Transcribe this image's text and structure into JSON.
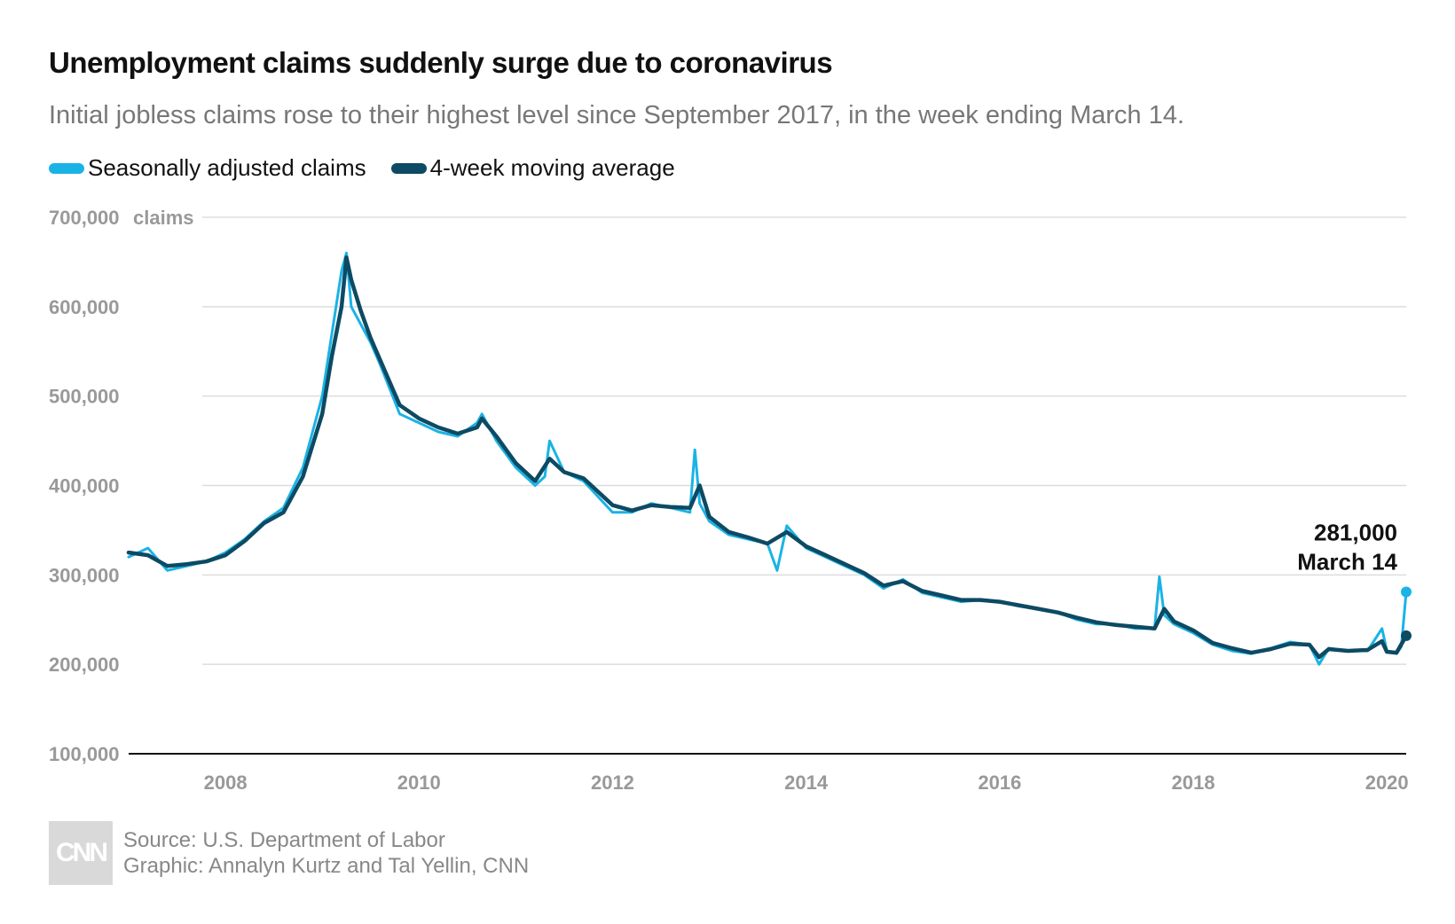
{
  "chart_data": {
    "type": "line",
    "title": "Unemployment claims suddenly surge due to coronavirus",
    "subtitle": "Initial jobless claims rose to their highest level since September 2017, in the week ending March 14.",
    "ylabel": "claims",
    "ylim": [
      100000,
      700000
    ],
    "xlim": [
      2007.0,
      2020.2
    ],
    "y_ticks": [
      {
        "value": 700000,
        "label": "700,000"
      },
      {
        "value": 600000,
        "label": "600,000"
      },
      {
        "value": 500000,
        "label": "500,000"
      },
      {
        "value": 400000,
        "label": "400,000"
      },
      {
        "value": 300000,
        "label": "300,000"
      },
      {
        "value": 200000,
        "label": "200,000"
      },
      {
        "value": 100000,
        "label": "100,000"
      }
    ],
    "x_ticks": [
      {
        "value": 2008,
        "label": "2008"
      },
      {
        "value": 2010,
        "label": "2010"
      },
      {
        "value": 2012,
        "label": "2012"
      },
      {
        "value": 2014,
        "label": "2014"
      },
      {
        "value": 2016,
        "label": "2016"
      },
      {
        "value": 2018,
        "label": "2018"
      },
      {
        "value": 2020,
        "label": "2020"
      }
    ],
    "grid": true,
    "legend_position": "top-left",
    "series": [
      {
        "name": "Seasonally adjusted claims",
        "color": "#1ab3e6",
        "x": [
          2007.0,
          2007.2,
          2007.4,
          2007.6,
          2007.8,
          2008.0,
          2008.2,
          2008.4,
          2008.6,
          2008.8,
          2008.9,
          2009.0,
          2009.1,
          2009.2,
          2009.25,
          2009.3,
          2009.4,
          2009.5,
          2009.6,
          2009.8,
          2010.0,
          2010.2,
          2010.4,
          2010.6,
          2010.65,
          2010.8,
          2011.0,
          2011.2,
          2011.3,
          2011.35,
          2011.5,
          2011.7,
          2012.0,
          2012.2,
          2012.4,
          2012.6,
          2012.8,
          2012.85,
          2012.9,
          2013.0,
          2013.2,
          2013.4,
          2013.6,
          2013.7,
          2013.8,
          2014.0,
          2014.2,
          2014.4,
          2014.6,
          2014.8,
          2015.0,
          2015.2,
          2015.4,
          2015.6,
          2015.8,
          2016.0,
          2016.2,
          2016.4,
          2016.6,
          2016.8,
          2017.0,
          2017.2,
          2017.4,
          2017.6,
          2017.65,
          2017.7,
          2017.8,
          2018.0,
          2018.2,
          2018.4,
          2018.6,
          2018.8,
          2019.0,
          2019.2,
          2019.3,
          2019.4,
          2019.6,
          2019.8,
          2019.95,
          2020.0,
          2020.1,
          2020.15,
          2020.2
        ],
        "values": [
          320000,
          330000,
          305000,
          310000,
          315000,
          325000,
          340000,
          360000,
          375000,
          420000,
          460000,
          500000,
          570000,
          640000,
          660000,
          600000,
          580000,
          560000,
          535000,
          480000,
          470000,
          460000,
          455000,
          470000,
          480000,
          450000,
          420000,
          400000,
          410000,
          450000,
          415000,
          405000,
          370000,
          370000,
          380000,
          375000,
          370000,
          440000,
          380000,
          360000,
          345000,
          340000,
          335000,
          305000,
          355000,
          330000,
          320000,
          310000,
          300000,
          285000,
          295000,
          280000,
          275000,
          270000,
          272000,
          270000,
          265000,
          262000,
          258000,
          250000,
          245000,
          245000,
          240000,
          240000,
          298000,
          255000,
          245000,
          235000,
          222000,
          215000,
          212000,
          218000,
          225000,
          222000,
          200000,
          218000,
          215000,
          215000,
          240000,
          215000,
          212000,
          220000,
          281000
        ]
      },
      {
        "name": "4-week moving average",
        "color": "#0d4a63",
        "x": [
          2007.0,
          2007.2,
          2007.4,
          2007.6,
          2007.8,
          2008.0,
          2008.2,
          2008.4,
          2008.6,
          2008.8,
          2008.9,
          2009.0,
          2009.1,
          2009.2,
          2009.25,
          2009.3,
          2009.4,
          2009.5,
          2009.6,
          2009.8,
          2010.0,
          2010.2,
          2010.4,
          2010.6,
          2010.65,
          2010.8,
          2011.0,
          2011.2,
          2011.35,
          2011.5,
          2011.7,
          2012.0,
          2012.2,
          2012.4,
          2012.6,
          2012.8,
          2012.9,
          2013.0,
          2013.2,
          2013.4,
          2013.6,
          2013.8,
          2014.0,
          2014.2,
          2014.4,
          2014.6,
          2014.8,
          2015.0,
          2015.2,
          2015.4,
          2015.6,
          2015.8,
          2016.0,
          2016.2,
          2016.4,
          2016.6,
          2016.8,
          2017.0,
          2017.2,
          2017.4,
          2017.6,
          2017.7,
          2017.8,
          2018.0,
          2018.2,
          2018.4,
          2018.6,
          2018.8,
          2019.0,
          2019.2,
          2019.3,
          2019.4,
          2019.6,
          2019.8,
          2019.95,
          2020.0,
          2020.1,
          2020.2
        ],
        "values": [
          325000,
          322000,
          310000,
          312000,
          315000,
          322000,
          338000,
          358000,
          370000,
          410000,
          445000,
          480000,
          545000,
          600000,
          655000,
          630000,
          595000,
          565000,
          540000,
          490000,
          475000,
          465000,
          458000,
          465000,
          475000,
          455000,
          425000,
          405000,
          430000,
          415000,
          408000,
          378000,
          372000,
          378000,
          376000,
          375000,
          400000,
          365000,
          348000,
          342000,
          335000,
          348000,
          332000,
          322000,
          312000,
          302000,
          288000,
          293000,
          282000,
          277000,
          272000,
          272000,
          270000,
          266000,
          262000,
          258000,
          252000,
          247000,
          244000,
          242000,
          240000,
          262000,
          248000,
          238000,
          224000,
          218000,
          213000,
          217000,
          223000,
          222000,
          208000,
          217000,
          215000,
          216000,
          226000,
          214000,
          213000,
          232000
        ]
      }
    ],
    "annotations": [
      {
        "value_label": "281,000",
        "date_label": "March 14",
        "x": 2020.2,
        "y": 281000
      }
    ],
    "source": "Source: U.S. Department of Labor",
    "credit": "Graphic: Annalyn Kurtz and Tal Yellin, CNN",
    "logo_text": "CNN"
  }
}
